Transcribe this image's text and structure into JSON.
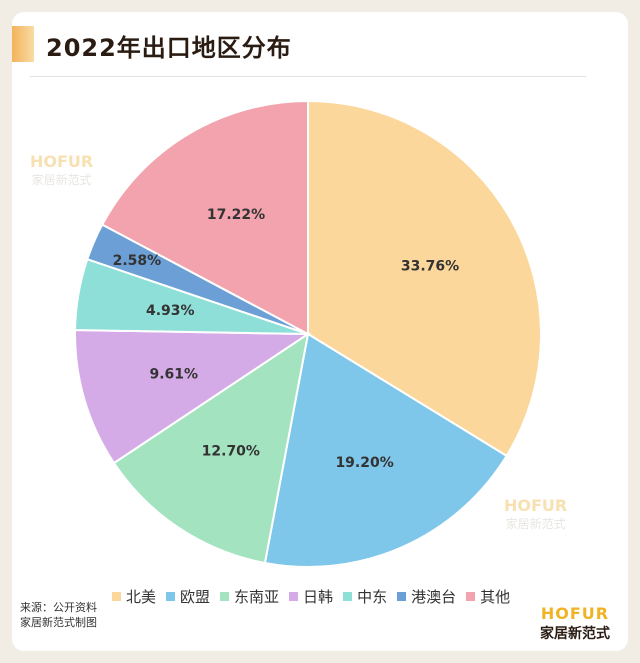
{
  "header": {
    "title": "2022年出口地区分布"
  },
  "chart_data": {
    "type": "pie",
    "title": "2022年出口地区分布",
    "categories": [
      "北美",
      "欧盟",
      "东南亚",
      "日韩",
      "中东",
      "港澳台",
      "其他"
    ],
    "values": [
      33.76,
      19.2,
      12.7,
      9.61,
      4.93,
      2.58,
      17.22
    ],
    "value_labels": [
      "33.76%",
      "19.20%",
      "12.70%",
      "9.61%",
      "4.93%",
      "2.58%",
      "17.22%"
    ],
    "colors": [
      "#fcd79c",
      "#7ec6ea",
      "#a3e3c0",
      "#d5abe7",
      "#8fdfd9",
      "#6b9fd6",
      "#f2a3ad"
    ],
    "legend_position": "bottom",
    "start_angle_deg": 0,
    "direction": "clockwise"
  },
  "watermarks": [
    {
      "brand": "HOFUR",
      "sub": "家居新范式"
    },
    {
      "brand": "HOFUR",
      "sub": "家居新范式"
    }
  ],
  "footer": {
    "source_line1": "来源：公开资料",
    "source_line2": "家居新范式制图",
    "logo_brand": "HOFUR",
    "logo_sub": "家居新范式"
  }
}
